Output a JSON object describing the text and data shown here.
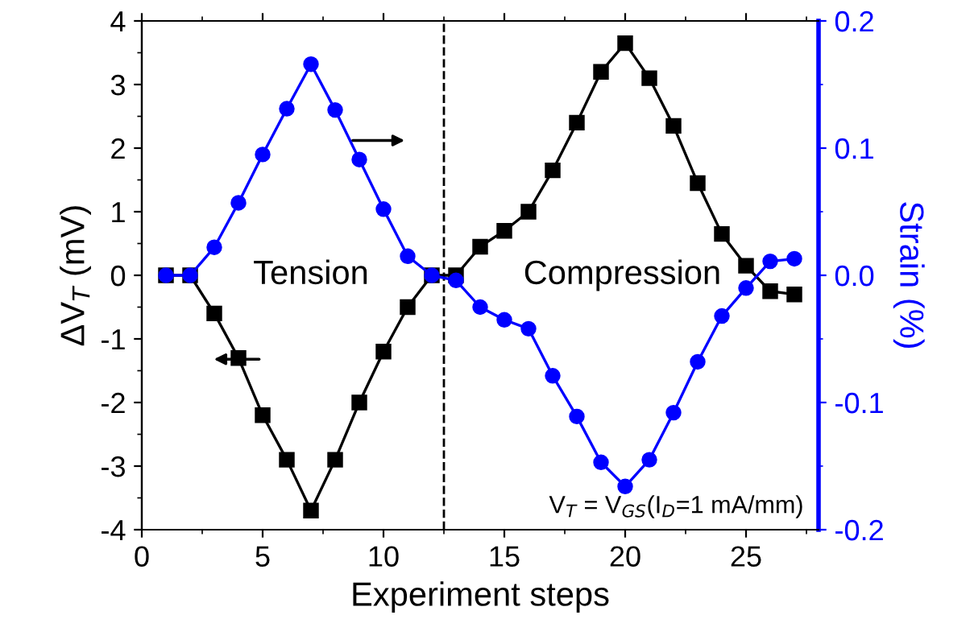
{
  "chart_data": {
    "type": "line",
    "xlabel": "Experiment steps",
    "ylabel": "ΔV$_{T}$ (mV)",
    "y2label": "Strain (%)",
    "x": [
      1,
      2,
      3,
      4,
      5,
      6,
      7,
      8,
      9,
      10,
      11,
      12,
      13,
      14,
      15,
      16,
      17,
      18,
      19,
      20,
      21,
      22,
      23,
      24,
      25,
      26,
      27
    ],
    "series": [
      {
        "color": "#000000",
        "marker": "square",
        "values": [
          0,
          0,
          -0.6,
          -1.3,
          -2.2,
          -2.9,
          -3.7,
          -2.9,
          -2.0,
          -1.2,
          -0.5,
          0,
          0,
          0.45,
          0.7,
          1.0,
          1.65,
          2.4,
          3.2,
          3.65,
          3.1,
          2.35,
          1.45,
          0.65,
          0.15,
          -0.25,
          -0.3
        ]
      },
      {
        "color": "#0000ff",
        "marker": "circle",
        "axis": "y2",
        "values": [
          0,
          0,
          0.022,
          0.057,
          0.095,
          0.131,
          0.166,
          0.13,
          0.091,
          0.052,
          0.015,
          0,
          -0.004,
          -0.025,
          -0.035,
          -0.042,
          -0.079,
          -0.111,
          -0.147,
          -0.166,
          -0.145,
          -0.108,
          -0.068,
          -0.032,
          -0.01,
          0.011,
          0.013
        ]
      }
    ],
    "xlim": [
      0,
      28
    ],
    "xticks": [
      0,
      5,
      10,
      15,
      20,
      25
    ],
    "ylim": [
      -4,
      4
    ],
    "yticks": [
      -4,
      -3,
      -2,
      -1,
      0,
      1,
      2,
      3,
      4
    ],
    "y2lim": [
      -0.2,
      0.2
    ],
    "y2ticks": [
      {
        "value": -0.2,
        "label": "-0.2"
      },
      {
        "value": -0.1,
        "label": "-0.1"
      },
      {
        "value": 0,
        "label": "0.0"
      },
      {
        "value": 0.1,
        "label": "0.1"
      },
      {
        "value": 0.2,
        "label": "0.2"
      }
    ],
    "ref_lines": [
      {
        "axis": "x",
        "value": 12.5,
        "color": "#000000",
        "line_style": "dashed"
      }
    ],
    "annotations": [
      "Tension",
      "Compression",
      "V$_{T}$ = V$_{GS}$(I$_{D}$=1 mA/mm)"
    ],
    "grid": false,
    "legend": false,
    "line_style": "solid"
  }
}
